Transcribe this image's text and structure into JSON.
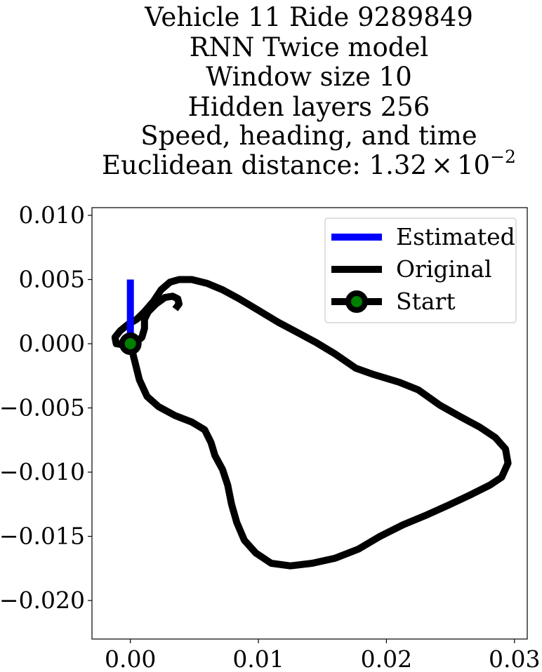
{
  "chart_data": {
    "type": "line",
    "title_lines": [
      "Vehicle 11 Ride 9289849",
      "RNN Twice model",
      "Window size 10",
      "Hidden layers 256",
      "Speed, heading, and time"
    ],
    "title_distance_label": "Euclidean distance: ",
    "title_distance_mantissa": "1.32",
    "title_distance_times": "×",
    "title_distance_base": "10",
    "title_distance_exponent": "−2",
    "xlabel": "",
    "ylabel": "",
    "xlim": [
      -0.003,
      0.031
    ],
    "ylim": [
      -0.023,
      0.0106
    ],
    "x_ticks": [
      {
        "value": 0.0,
        "label": "0.00"
      },
      {
        "value": 0.01,
        "label": "0.01"
      },
      {
        "value": 0.02,
        "label": "0.02"
      },
      {
        "value": 0.03,
        "label": "0.03"
      }
    ],
    "y_ticks": [
      {
        "value": 0.01,
        "label": "0.010"
      },
      {
        "value": 0.005,
        "label": "0.005"
      },
      {
        "value": 0.0,
        "label": "0.000"
      },
      {
        "value": -0.005,
        "label": "−0.005"
      },
      {
        "value": -0.01,
        "label": "−0.010"
      },
      {
        "value": -0.015,
        "label": "−0.015"
      },
      {
        "value": -0.02,
        "label": "−0.020"
      }
    ],
    "grid": false,
    "legend_position": "upper-right",
    "series": [
      {
        "name": "Estimated",
        "color": "#0000ff",
        "points": [
          [
            0.0,
            0.005
          ],
          [
            0.0,
            0.001
          ],
          [
            0.0,
            0.0
          ]
        ]
      },
      {
        "name": "Original",
        "color": "#000000",
        "points": [
          [
            0.0,
            0.0
          ],
          [
            0.0003,
            -0.0012
          ],
          [
            0.0007,
            -0.0028
          ],
          [
            0.0013,
            -0.0041
          ],
          [
            0.0022,
            -0.0049
          ],
          [
            0.0035,
            -0.0056
          ],
          [
            0.0048,
            -0.0061
          ],
          [
            0.0058,
            -0.0067
          ],
          [
            0.0063,
            -0.0077
          ],
          [
            0.0066,
            -0.0087
          ],
          [
            0.0072,
            -0.0098
          ],
          [
            0.0076,
            -0.011
          ],
          [
            0.0079,
            -0.0125
          ],
          [
            0.0083,
            -0.0139
          ],
          [
            0.0089,
            -0.0153
          ],
          [
            0.0098,
            -0.0163
          ],
          [
            0.011,
            -0.0171
          ],
          [
            0.0125,
            -0.0173
          ],
          [
            0.0142,
            -0.0171
          ],
          [
            0.016,
            -0.0167
          ],
          [
            0.0178,
            -0.016
          ],
          [
            0.0195,
            -0.015
          ],
          [
            0.0213,
            -0.0141
          ],
          [
            0.023,
            -0.0134
          ],
          [
            0.0248,
            -0.0126
          ],
          [
            0.0265,
            -0.0118
          ],
          [
            0.0281,
            -0.011
          ],
          [
            0.029,
            -0.0104
          ],
          [
            0.0295,
            -0.0093
          ],
          [
            0.0293,
            -0.0082
          ],
          [
            0.0285,
            -0.0073
          ],
          [
            0.0273,
            -0.0065
          ],
          [
            0.0258,
            -0.0057
          ],
          [
            0.0242,
            -0.0048
          ],
          [
            0.0225,
            -0.0036
          ],
          [
            0.021,
            -0.003
          ],
          [
            0.019,
            -0.0024
          ],
          [
            0.0176,
            -0.0019
          ],
          [
            0.016,
            -0.0008
          ],
          [
            0.0145,
            0.0001
          ],
          [
            0.013,
            0.0009
          ],
          [
            0.0115,
            0.0017
          ],
          [
            0.01,
            0.0026
          ],
          [
            0.0085,
            0.0035
          ],
          [
            0.0072,
            0.0042
          ],
          [
            0.006,
            0.0047
          ],
          [
            0.0048,
            0.005
          ],
          [
            0.0038,
            0.005
          ],
          [
            0.0031,
            0.0048
          ],
          [
            0.0024,
            0.0042
          ],
          [
            0.0018,
            0.0033
          ],
          [
            0.0011,
            0.0025
          ],
          [
            0.0005,
            0.0019
          ],
          [
            -0.0002,
            0.0015
          ],
          [
            -0.0008,
            0.001
          ],
          [
            -0.0012,
            0.0005
          ],
          [
            -0.0011,
            0.0
          ],
          [
            -0.0005,
            -0.0001
          ],
          [
            0.0003,
            0.0
          ],
          [
            0.0009,
            0.0005
          ],
          [
            0.0011,
            0.0012
          ],
          [
            0.0011,
            0.0019
          ],
          [
            0.0014,
            0.0025
          ],
          [
            0.002,
            0.0031
          ],
          [
            0.0027,
            0.0036
          ],
          [
            0.0033,
            0.0037
          ],
          [
            0.0037,
            0.0035
          ],
          [
            0.0038,
            0.0031
          ],
          [
            0.0035,
            0.0027
          ]
        ]
      }
    ],
    "start_marker": {
      "name": "Start",
      "x": 0.0,
      "y": 0.0,
      "fill": "#008000",
      "edge": "#000000"
    }
  }
}
